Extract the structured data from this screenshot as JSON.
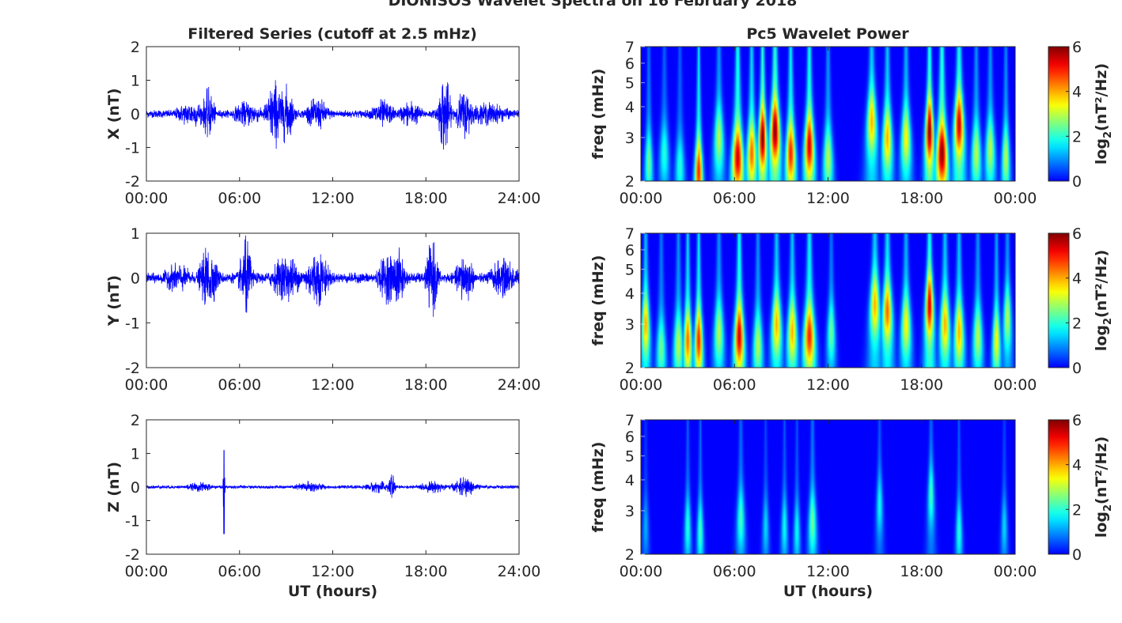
{
  "figure": {
    "suptitle": "DIONISOS Wavelet Spectra on 16 February 2018",
    "left_title": "Filtered Series (cutoff at 2.5 mHz)",
    "right_title": "Pc5 Wavelet Power"
  },
  "colors": {
    "series_line": "#0000ff",
    "axes": "#262626",
    "background": "#00008f"
  },
  "chart_data": [
    {
      "type": "line",
      "name": "X",
      "ylabel": "X (nT)",
      "xlabel": "",
      "xlim": [
        0,
        24
      ],
      "ylim": [
        -2,
        2
      ],
      "yticks": [
        -2,
        -1,
        0,
        1,
        2
      ],
      "xticks": [
        0,
        6,
        12,
        18,
        24
      ],
      "xticklabels": [
        "00:00",
        "06:00",
        "12:00",
        "18:00",
        "24:00"
      ],
      "baseline_amplitude": 0.12,
      "bursts": [
        {
          "t": 3.0,
          "w": 1.2,
          "a": 0.4
        },
        {
          "t": 4.0,
          "w": 0.4,
          "a": 0.8
        },
        {
          "t": 6.5,
          "w": 1.0,
          "a": 0.4
        },
        {
          "t": 8.3,
          "w": 0.6,
          "a": 1.05
        },
        {
          "t": 9.0,
          "w": 0.5,
          "a": 0.9
        },
        {
          "t": 11.0,
          "w": 0.8,
          "a": 0.5
        },
        {
          "t": 15.2,
          "w": 0.8,
          "a": 0.45
        },
        {
          "t": 17.0,
          "w": 0.8,
          "a": 0.4
        },
        {
          "t": 19.2,
          "w": 0.4,
          "a": 1.25
        },
        {
          "t": 20.5,
          "w": 0.6,
          "a": 0.75
        },
        {
          "t": 22.0,
          "w": 1.5,
          "a": 0.35
        }
      ]
    },
    {
      "type": "line",
      "name": "Y",
      "ylabel": "Y (nT)",
      "xlabel": "",
      "xlim": [
        0,
        24
      ],
      "ylim": [
        -2,
        1
      ],
      "yticks": [
        -2,
        -1,
        0,
        1
      ],
      "xticks": [
        0,
        6,
        12,
        18,
        24
      ],
      "xticklabels": [
        "00:00",
        "06:00",
        "12:00",
        "18:00",
        "24:00"
      ],
      "baseline_amplitude": 0.12,
      "bursts": [
        {
          "t": 2.0,
          "w": 1.0,
          "a": 0.35
        },
        {
          "t": 4.0,
          "w": 0.6,
          "a": 0.75
        },
        {
          "t": 6.4,
          "w": 0.4,
          "a": 0.95
        },
        {
          "t": 9.0,
          "w": 1.0,
          "a": 0.55
        },
        {
          "t": 11.0,
          "w": 0.8,
          "a": 0.65
        },
        {
          "t": 15.5,
          "w": 0.6,
          "a": 0.6
        },
        {
          "t": 16.2,
          "w": 0.5,
          "a": 0.7
        },
        {
          "t": 18.4,
          "w": 0.4,
          "a": 0.9
        },
        {
          "t": 20.5,
          "w": 0.6,
          "a": 0.6
        },
        {
          "t": 23.0,
          "w": 1.0,
          "a": 0.45
        }
      ]
    },
    {
      "type": "line",
      "name": "Z",
      "ylabel": "Z (nT)",
      "xlabel": "UT (hours)",
      "xlim": [
        0,
        24
      ],
      "ylim": [
        -2,
        2
      ],
      "yticks": [
        -2,
        -1,
        0,
        1,
        2
      ],
      "xticks": [
        0,
        6,
        12,
        18,
        24
      ],
      "xticklabels": [
        "00:00",
        "06:00",
        "12:00",
        "18:00",
        "24:00"
      ],
      "baseline_amplitude": 0.05,
      "bursts": [
        {
          "t": 3.5,
          "w": 1.0,
          "a": 0.15
        },
        {
          "t": 5.0,
          "w": 0.05,
          "a": 1.4
        },
        {
          "t": 10.5,
          "w": 1.0,
          "a": 0.18
        },
        {
          "t": 15.0,
          "w": 1.0,
          "a": 0.18
        },
        {
          "t": 15.8,
          "w": 0.2,
          "a": 0.55
        },
        {
          "t": 18.5,
          "w": 1.0,
          "a": 0.18
        },
        {
          "t": 20.5,
          "w": 0.8,
          "a": 0.3
        }
      ]
    },
    {
      "type": "heatmap",
      "name": "X wavelet power",
      "ylabel": "freq (mHz)",
      "xlabel": "",
      "xlim": [
        0,
        24
      ],
      "ylim": [
        2,
        7
      ],
      "yscale": "log",
      "yticks": [
        2,
        3,
        4,
        5,
        6,
        7
      ],
      "xticks": [
        0,
        6,
        12,
        18,
        24
      ],
      "xticklabels": [
        "00:00",
        "06:00",
        "12:00",
        "18:00",
        "00:00"
      ],
      "colorbar": {
        "label": "log2(nT²/Hz)",
        "range": [
          0,
          6
        ],
        "ticks": [
          0,
          2,
          4,
          6
        ],
        "colormap": "jet"
      },
      "peaks": [
        {
          "t": 0.5,
          "f": 2.4,
          "p": 2.5,
          "dt": 0.25
        },
        {
          "t": 1.5,
          "f": 2.6,
          "p": 2.0,
          "dt": 0.3
        },
        {
          "t": 2.5,
          "f": 2.3,
          "p": 2.0,
          "dt": 0.3
        },
        {
          "t": 3.7,
          "f": 2.2,
          "p": 5.0,
          "dt": 0.25
        },
        {
          "t": 5.0,
          "f": 3.0,
          "p": 3.0,
          "dt": 0.3
        },
        {
          "t": 6.2,
          "f": 2.5,
          "p": 5.5,
          "dt": 0.35
        },
        {
          "t": 7.1,
          "f": 2.6,
          "p": 4.5,
          "dt": 0.3
        },
        {
          "t": 7.8,
          "f": 3.0,
          "p": 6.0,
          "dt": 0.25
        },
        {
          "t": 8.6,
          "f": 3.2,
          "p": 6.0,
          "dt": 0.3
        },
        {
          "t": 9.6,
          "f": 2.6,
          "p": 5.0,
          "dt": 0.3
        },
        {
          "t": 10.8,
          "f": 2.8,
          "p": 5.5,
          "dt": 0.3
        },
        {
          "t": 12.0,
          "f": 2.5,
          "p": 3.0,
          "dt": 0.3
        },
        {
          "t": 14.8,
          "f": 3.5,
          "p": 4.0,
          "dt": 0.3
        },
        {
          "t": 15.8,
          "f": 3.0,
          "p": 4.0,
          "dt": 0.3
        },
        {
          "t": 17.0,
          "f": 3.0,
          "p": 3.5,
          "dt": 0.3
        },
        {
          "t": 18.5,
          "f": 3.2,
          "p": 6.0,
          "dt": 0.25
        },
        {
          "t": 19.3,
          "f": 2.6,
          "p": 6.0,
          "dt": 0.35
        },
        {
          "t": 20.4,
          "f": 3.4,
          "p": 5.5,
          "dt": 0.3
        },
        {
          "t": 21.5,
          "f": 2.6,
          "p": 3.0,
          "dt": 0.3
        },
        {
          "t": 22.4,
          "f": 2.7,
          "p": 3.0,
          "dt": 0.3
        },
        {
          "t": 23.4,
          "f": 2.5,
          "p": 3.0,
          "dt": 0.25
        }
      ]
    },
    {
      "type": "heatmap",
      "name": "Y wavelet power",
      "ylabel": "freq (mHz)",
      "xlabel": "",
      "xlim": [
        0,
        24
      ],
      "ylim": [
        2,
        7
      ],
      "yscale": "log",
      "yticks": [
        2,
        3,
        4,
        5,
        6,
        7
      ],
      "xticks": [
        0,
        6,
        12,
        18,
        24
      ],
      "xticklabels": [
        "00:00",
        "06:00",
        "12:00",
        "18:00",
        "00:00"
      ],
      "colorbar": {
        "label": "log2(nT²/Hz)",
        "range": [
          0,
          6
        ],
        "ticks": [
          0,
          2,
          4,
          6
        ],
        "colormap": "jet"
      },
      "peaks": [
        {
          "t": 0.3,
          "f": 3.0,
          "p": 4.0,
          "dt": 0.25
        },
        {
          "t": 1.3,
          "f": 2.4,
          "p": 2.5,
          "dt": 0.3
        },
        {
          "t": 2.4,
          "f": 2.5,
          "p": 3.0,
          "dt": 0.3
        },
        {
          "t": 3.0,
          "f": 2.6,
          "p": 4.5,
          "dt": 0.25
        },
        {
          "t": 3.7,
          "f": 2.6,
          "p": 5.0,
          "dt": 0.25
        },
        {
          "t": 5.0,
          "f": 2.8,
          "p": 3.0,
          "dt": 0.3
        },
        {
          "t": 6.3,
          "f": 2.7,
          "p": 5.5,
          "dt": 0.3
        },
        {
          "t": 7.5,
          "f": 2.5,
          "p": 3.0,
          "dt": 0.3
        },
        {
          "t": 8.7,
          "f": 3.0,
          "p": 4.0,
          "dt": 0.3
        },
        {
          "t": 9.7,
          "f": 2.8,
          "p": 4.0,
          "dt": 0.3
        },
        {
          "t": 10.8,
          "f": 2.7,
          "p": 5.0,
          "dt": 0.35
        },
        {
          "t": 12.2,
          "f": 2.8,
          "p": 2.5,
          "dt": 0.25
        },
        {
          "t": 15.0,
          "f": 3.6,
          "p": 4.0,
          "dt": 0.3
        },
        {
          "t": 15.8,
          "f": 3.4,
          "p": 4.5,
          "dt": 0.3
        },
        {
          "t": 17.0,
          "f": 3.0,
          "p": 3.5,
          "dt": 0.3
        },
        {
          "t": 18.5,
          "f": 3.6,
          "p": 5.5,
          "dt": 0.25
        },
        {
          "t": 19.5,
          "f": 3.0,
          "p": 4.0,
          "dt": 0.3
        },
        {
          "t": 20.4,
          "f": 2.8,
          "p": 4.0,
          "dt": 0.3
        },
        {
          "t": 21.6,
          "f": 2.7,
          "p": 3.0,
          "dt": 0.3
        },
        {
          "t": 22.8,
          "f": 2.6,
          "p": 3.5,
          "dt": 0.25
        },
        {
          "t": 23.5,
          "f": 3.2,
          "p": 3.0,
          "dt": 0.25
        }
      ]
    },
    {
      "type": "heatmap",
      "name": "Z wavelet power",
      "ylabel": "freq (mHz)",
      "xlabel": "UT (hours)",
      "xlim": [
        0,
        24
      ],
      "ylim": [
        2,
        7
      ],
      "yscale": "log",
      "yticks": [
        2,
        3,
        4,
        5,
        6,
        7
      ],
      "xticks": [
        0,
        6,
        12,
        18,
        24
      ],
      "xticklabels": [
        "00:00",
        "06:00",
        "12:00",
        "18:00",
        "00:00"
      ],
      "colorbar": {
        "label": "log2(nT²/Hz)",
        "range": [
          0,
          6
        ],
        "ticks": [
          0,
          2,
          4,
          6
        ],
        "colormap": "jet"
      },
      "peaks": [
        {
          "t": 0.3,
          "f": 2.6,
          "p": 1.2,
          "dt": 0.2
        },
        {
          "t": 3.0,
          "f": 2.6,
          "p": 2.0,
          "dt": 0.2
        },
        {
          "t": 3.8,
          "f": 2.5,
          "p": 2.2,
          "dt": 0.2
        },
        {
          "t": 6.4,
          "f": 2.8,
          "p": 2.2,
          "dt": 0.25
        },
        {
          "t": 8.0,
          "f": 2.6,
          "p": 1.5,
          "dt": 0.2
        },
        {
          "t": 9.2,
          "f": 2.6,
          "p": 1.8,
          "dt": 0.2
        },
        {
          "t": 10.0,
          "f": 2.5,
          "p": 1.8,
          "dt": 0.2
        },
        {
          "t": 11.0,
          "f": 2.7,
          "p": 2.5,
          "dt": 0.25
        },
        {
          "t": 15.3,
          "f": 3.2,
          "p": 1.8,
          "dt": 0.2
        },
        {
          "t": 18.6,
          "f": 3.5,
          "p": 2.2,
          "dt": 0.2
        },
        {
          "t": 20.4,
          "f": 2.5,
          "p": 2.0,
          "dt": 0.2
        },
        {
          "t": 23.3,
          "f": 2.6,
          "p": 1.5,
          "dt": 0.2
        }
      ]
    }
  ]
}
